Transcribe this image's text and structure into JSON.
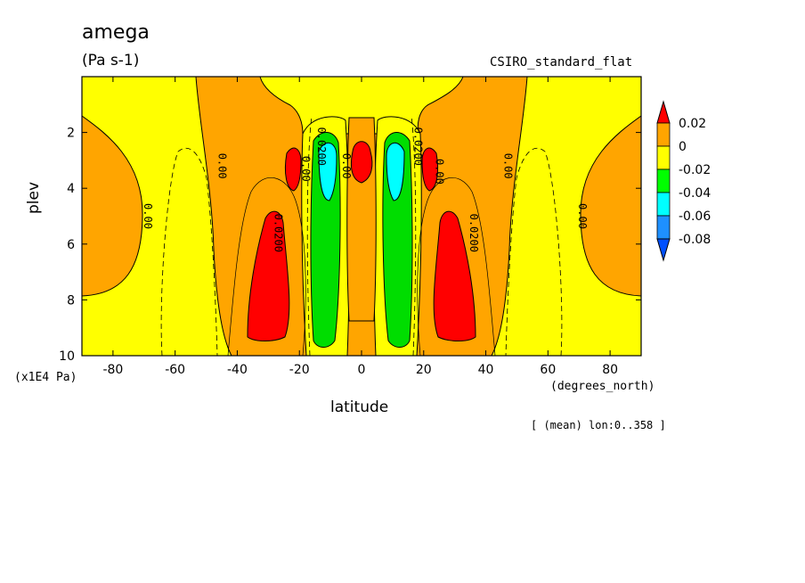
{
  "title": "amega",
  "units": "(Pa s-1)",
  "source_label": "CSIRO_standard_flat",
  "footer_note": "[ (mean) lon:0..358 ]",
  "chart_data": {
    "type": "heatmap",
    "variable": "omega",
    "xlabel": "latitude",
    "xunits": "(degrees_north)",
    "ylabel": "plev",
    "yunits": "(x1E4 Pa)",
    "xlim": [
      -90,
      90
    ],
    "ylim": [
      10,
      0
    ],
    "x_ticks": [
      -80,
      -60,
      -40,
      -20,
      0,
      20,
      40,
      60,
      80
    ],
    "y_ticks": [
      2,
      4,
      6,
      8,
      10
    ],
    "colorbar": {
      "labels": [
        "0.02",
        "0",
        "-0.02",
        "-0.04",
        "-0.06",
        "-0.08"
      ],
      "colors": [
        "#ff0000",
        "#ffa500",
        "#ffff00",
        "#00ff00",
        "#00ffff",
        "#1e90ff",
        "#0050ff"
      ]
    },
    "contour_labels": [
      {
        "text": "0.00",
        "x": -70,
        "y": 5.0
      },
      {
        "text": "0.00",
        "x": -46,
        "y": 3.2
      },
      {
        "text": "0.0200",
        "x": -28,
        "y": 5.6
      },
      {
        "text": "0.00",
        "x": -19,
        "y": 3.3
      },
      {
        "text": "0.0200",
        "x": -14,
        "y": 2.5
      },
      {
        "text": "0.00",
        "x": -6,
        "y": 3.2
      },
      {
        "text": "0.0200",
        "x": 17,
        "y": 2.5
      },
      {
        "text": "0.00",
        "x": 24,
        "y": 3.4
      },
      {
        "text": "0.0200",
        "x": 35,
        "y": 5.6
      },
      {
        "text": "0.00",
        "x": 46,
        "y": 3.2
      },
      {
        "text": "0.00",
        "x": 70,
        "y": 5.0
      }
    ]
  }
}
